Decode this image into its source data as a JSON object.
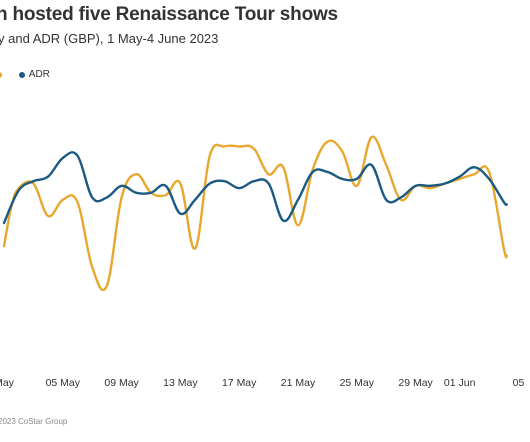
{
  "header": {
    "title": "n hosted five Renaissance Tour shows",
    "subtitle": "y and ADR (GBP), 1 May-4 June 2023"
  },
  "legend": {
    "items": [
      {
        "label": "",
        "color": "#E8A82E"
      },
      {
        "label": "ADR",
        "color": "#1B5A82"
      }
    ]
  },
  "source": "2023 CoStar Group",
  "chart_data": {
    "type": "line",
    "title": "",
    "xlabel": "",
    "ylabel": "",
    "x_ticks": [
      "May",
      "05 May",
      "09 May",
      "13 May",
      "17 May",
      "21 May",
      "25 May",
      "29 May",
      "01 Jun",
      "05"
    ],
    "x_tick_days": [
      1,
      5,
      9,
      13,
      17,
      21,
      25,
      29,
      32,
      36
    ],
    "xlim": [
      1,
      35.2
    ],
    "ylim": [
      0,
      100
    ],
    "grid": false,
    "legend_position": "top-left",
    "series": [
      {
        "name": "",
        "color": "#E8A82E",
        "x": [
          1,
          1.5,
          2,
          3,
          4,
          5,
          6,
          7,
          8,
          9,
          10,
          11,
          12,
          13,
          14,
          15,
          16,
          17,
          18,
          19,
          20,
          21,
          22,
          23,
          24,
          25,
          26,
          27,
          28,
          29,
          30,
          31,
          32,
          33,
          34,
          35,
          35.2
        ],
        "y": [
          37,
          54,
          62,
          64,
          50,
          57,
          56,
          28,
          20,
          58,
          68,
          60,
          59,
          64,
          36,
          76,
          80,
          80,
          79,
          68,
          71,
          46,
          70,
          82,
          78,
          63,
          84,
          72,
          57,
          63,
          62,
          64,
          66,
          68,
          69,
          36,
          33
        ]
      },
      {
        "name": "ADR",
        "color": "#1B5A82",
        "x": [
          1,
          2,
          3,
          4,
          5,
          6,
          7,
          8,
          9,
          10,
          11,
          12,
          13,
          14,
          15,
          16,
          17,
          18,
          19,
          20,
          21,
          22,
          23,
          24,
          25,
          26,
          27,
          28,
          29,
          30,
          31,
          32,
          33,
          34,
          35,
          35.2
        ],
        "y": [
          47,
          61,
          65,
          67,
          75,
          76,
          58,
          58,
          63,
          60,
          60,
          63,
          51,
          57,
          64,
          65,
          62,
          65,
          64,
          48,
          57,
          69,
          69,
          66,
          66,
          72,
          57,
          58,
          63,
          63,
          64,
          67,
          71,
          66,
          56,
          55
        ]
      }
    ]
  }
}
